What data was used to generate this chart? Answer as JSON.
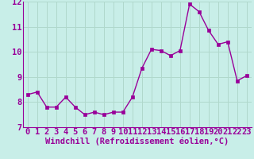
{
  "x": [
    0,
    1,
    2,
    3,
    4,
    5,
    6,
    7,
    8,
    9,
    10,
    11,
    12,
    13,
    14,
    15,
    16,
    17,
    18,
    19,
    20,
    21,
    22,
    23
  ],
  "y": [
    8.3,
    8.4,
    7.8,
    7.8,
    8.2,
    7.8,
    7.5,
    7.6,
    7.5,
    7.6,
    7.6,
    8.2,
    9.35,
    10.1,
    10.05,
    9.85,
    10.05,
    11.9,
    11.6,
    10.85,
    10.3,
    10.4,
    8.85,
    9.05
  ],
  "line_color": "#990099",
  "marker_color": "#990099",
  "bg_color": "#c8eee8",
  "grid_color": "#b0d8cc",
  "xlabel": "Windchill (Refroidissement éolien,°C)",
  "ylim": [
    7,
    12
  ],
  "xlim_min": -0.5,
  "xlim_max": 23.5,
  "yticks": [
    7,
    8,
    9,
    10,
    11,
    12
  ],
  "xticks": [
    0,
    1,
    2,
    3,
    4,
    5,
    6,
    7,
    8,
    9,
    10,
    11,
    12,
    13,
    14,
    15,
    16,
    17,
    18,
    19,
    20,
    21,
    22,
    23
  ],
  "xlabel_fontsize": 7.5,
  "tick_fontsize": 7.5,
  "line_width": 1.0,
  "marker_size": 2.5
}
